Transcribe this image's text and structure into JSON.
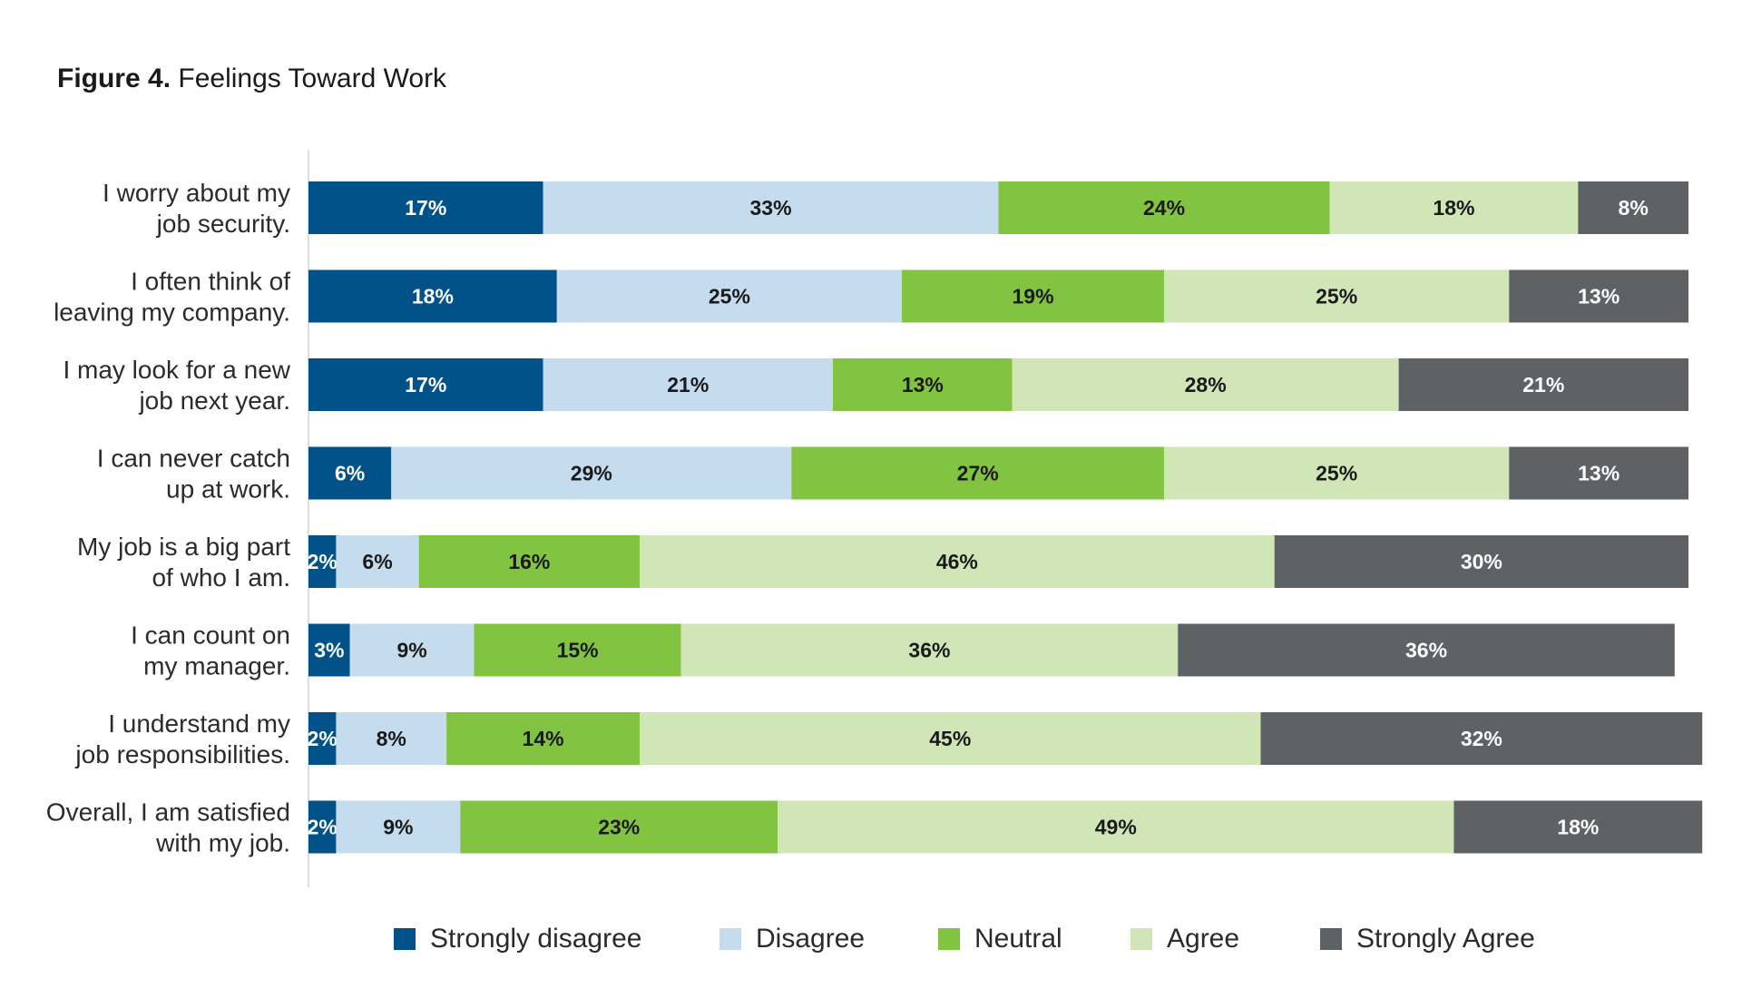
{
  "figure": {
    "label": "Figure 4.",
    "title": "Feelings Toward Work"
  },
  "chart_data": {
    "type": "bar",
    "orientation": "horizontal",
    "stacked": true,
    "title": "Figure 4. Feelings Toward Work",
    "xlabel": "",
    "ylabel": "",
    "xlim": [
      0,
      100
    ],
    "grid": false,
    "legend_position": "bottom",
    "value_suffix": "%",
    "categories": [
      [
        "I worry about my",
        "job security."
      ],
      [
        "I often think of",
        "leaving my company."
      ],
      [
        "I may look for a new",
        "job next year."
      ],
      [
        "I can never catch",
        "up at work."
      ],
      [
        "My job is a big part",
        "of who I am."
      ],
      [
        "I can count on",
        "my manager."
      ],
      [
        "I understand my",
        "job responsibilities."
      ],
      [
        "Overall, I am satisfied",
        "with my job."
      ]
    ],
    "series": [
      {
        "name": "Strongly disagree",
        "color": "#005289",
        "label_color": "#ffffff",
        "values": [
          17,
          18,
          17,
          6,
          2,
          3,
          2,
          2
        ]
      },
      {
        "name": "Disagree",
        "color": "#c4dcee",
        "label_color": "#1a1a1a",
        "values": [
          33,
          25,
          21,
          29,
          6,
          9,
          8,
          9
        ]
      },
      {
        "name": "Neutral",
        "color": "#82c341",
        "label_color": "#1a1a1a",
        "values": [
          24,
          19,
          13,
          27,
          16,
          15,
          14,
          23
        ]
      },
      {
        "name": "Agree",
        "color": "#d1e6b7",
        "label_color": "#1a1a1a",
        "values": [
          18,
          25,
          28,
          25,
          46,
          36,
          45,
          49
        ]
      },
      {
        "name": "Strongly Agree",
        "color": "#5e6264",
        "label_color": "#ffffff",
        "values": [
          8,
          13,
          21,
          13,
          30,
          36,
          32,
          18
        ]
      }
    ]
  }
}
